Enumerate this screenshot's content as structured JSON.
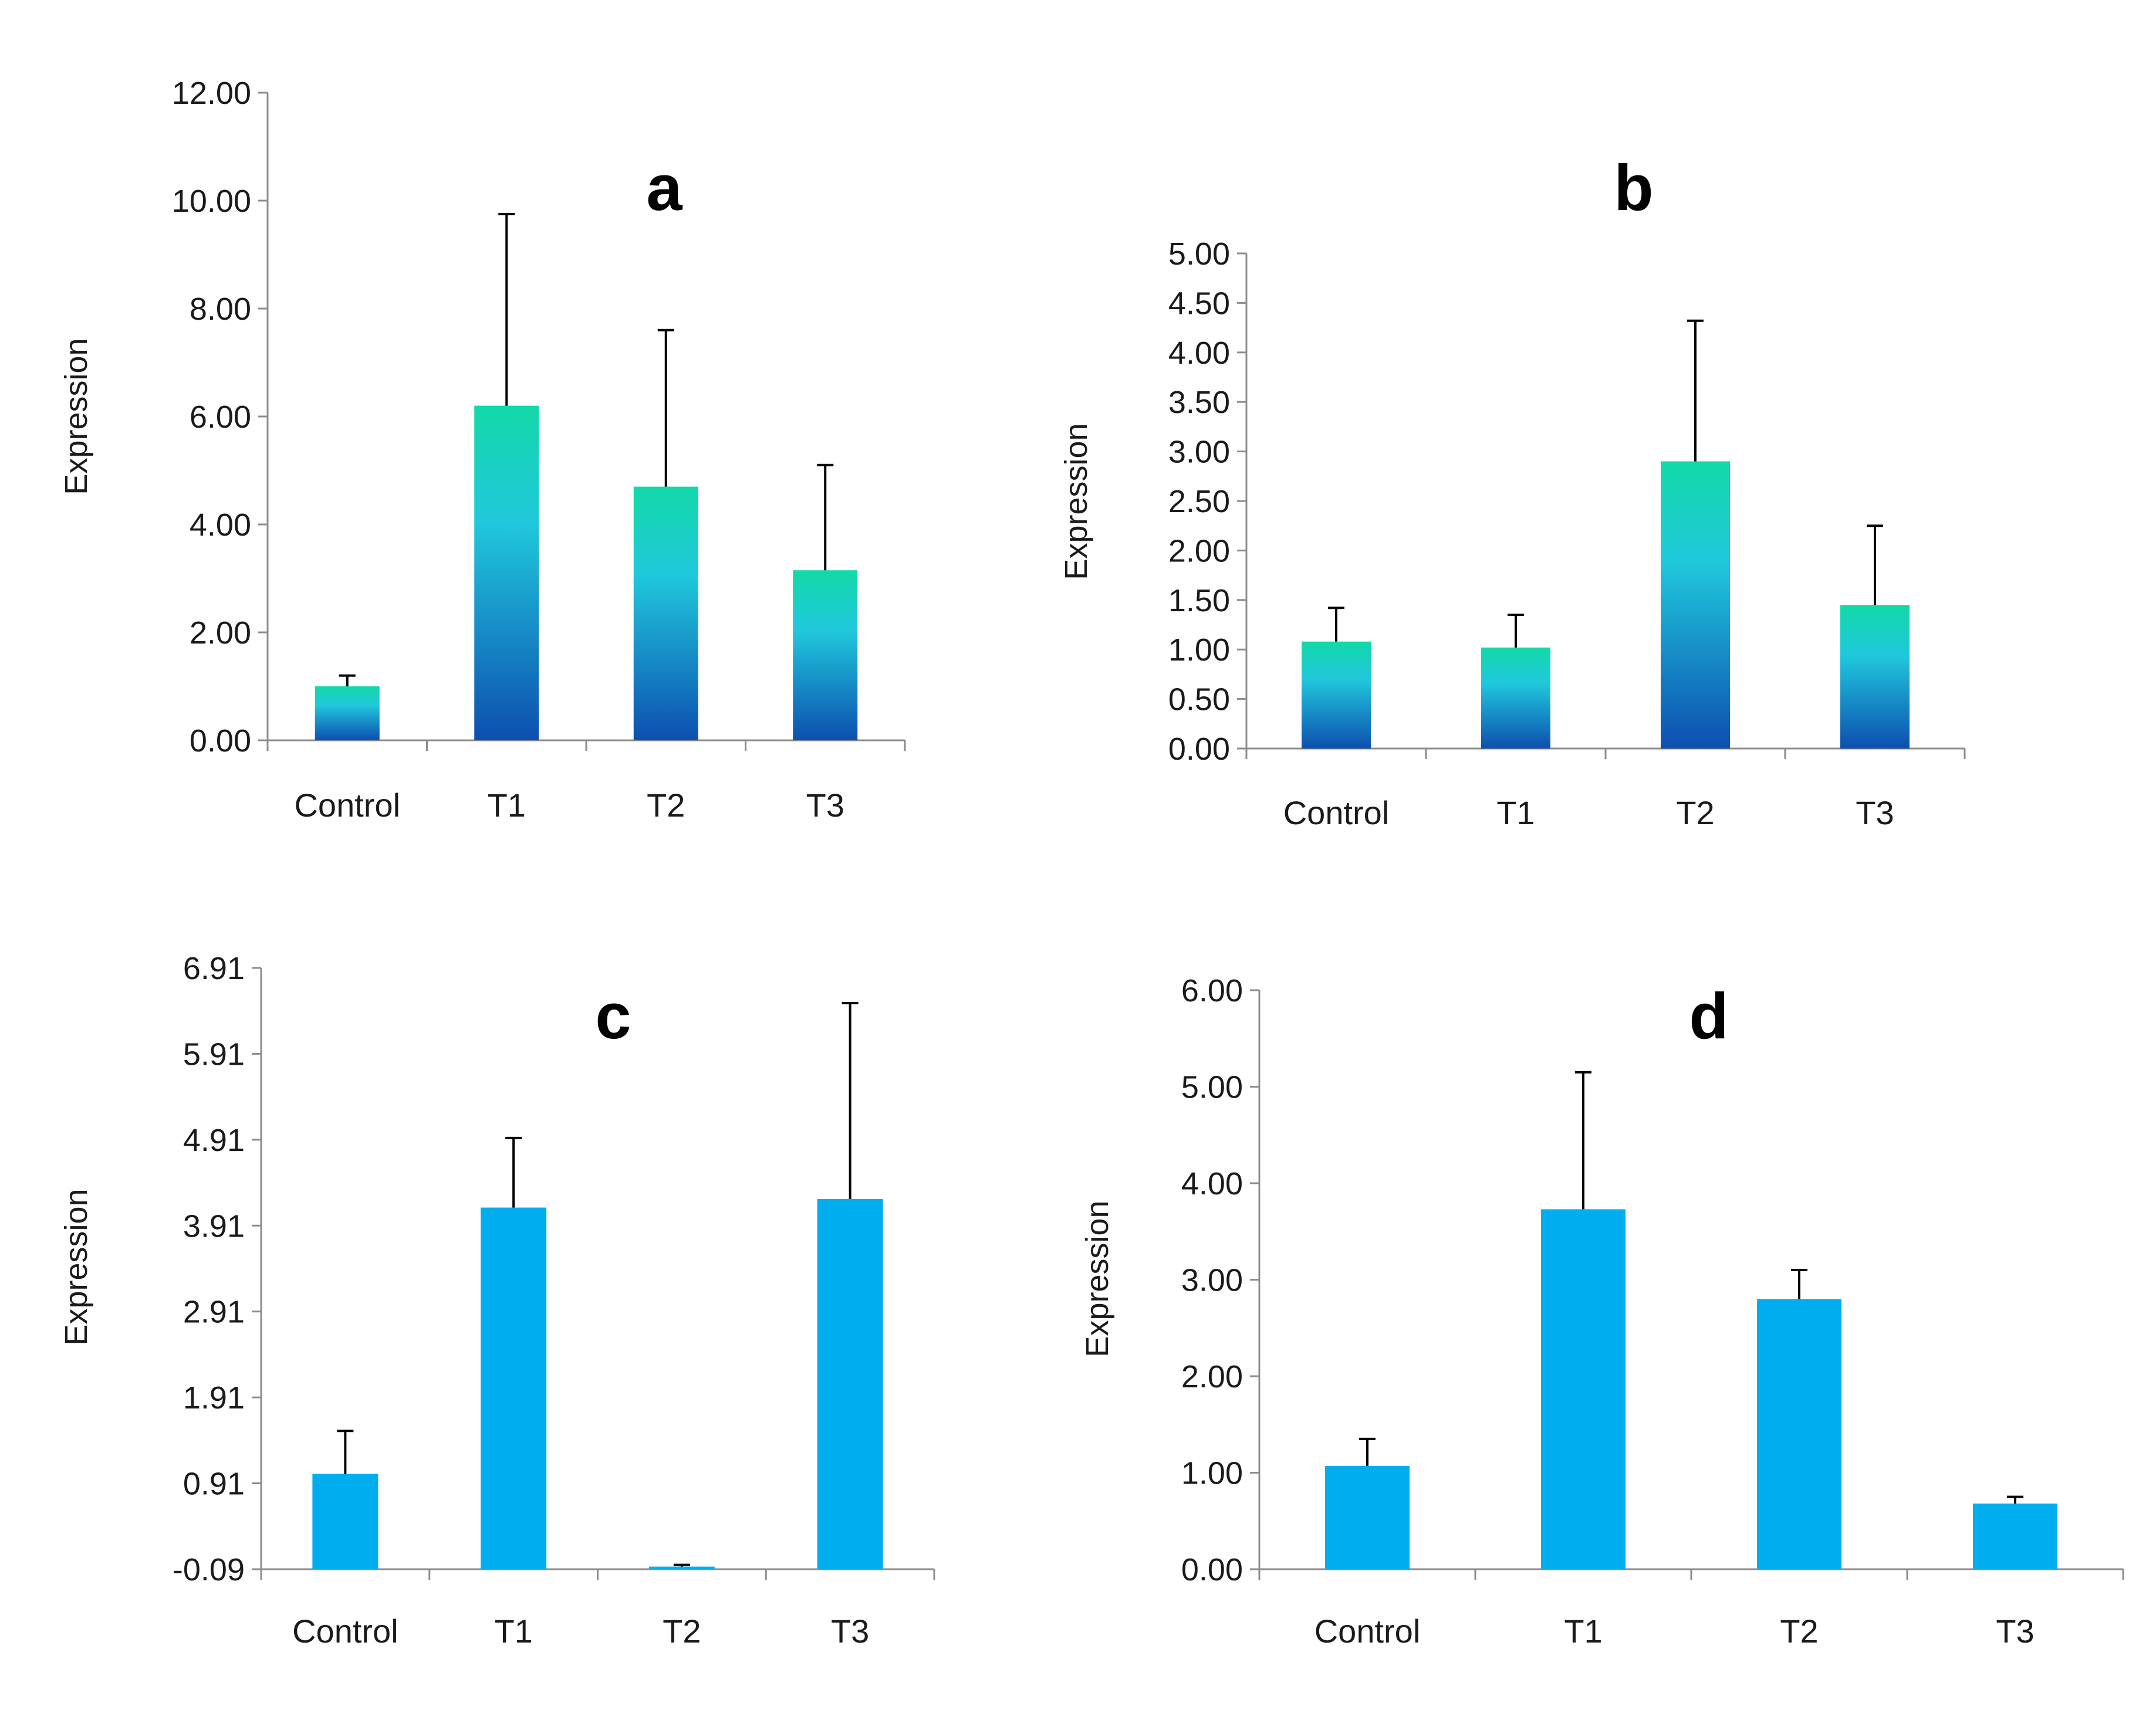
{
  "chart_data": [
    {
      "id": "a",
      "type": "bar",
      "title": "a",
      "ylabel": "Expression",
      "xlabel": "",
      "categories": [
        "Control",
        "T1",
        "T2",
        "T3"
      ],
      "values": [
        1.0,
        6.2,
        4.7,
        3.15
      ],
      "error_upper": [
        1.2,
        9.75,
        7.6,
        5.1
      ],
      "ylim": [
        0.0,
        12.0
      ],
      "ytick_labels": [
        "0.00",
        "2.00",
        "4.00",
        "6.00",
        "8.00",
        "10.00",
        "12.00"
      ],
      "fill": "gradient",
      "colors": {
        "top": "#12d9a8",
        "mid": "#20c8dc",
        "bottom": "#0d4fb0"
      }
    },
    {
      "id": "b",
      "type": "bar",
      "title": "b",
      "ylabel": "Expression",
      "xlabel": "",
      "categories": [
        "Control",
        "T1",
        "T2",
        "T3"
      ],
      "values": [
        1.08,
        1.02,
        2.9,
        1.45
      ],
      "error_upper": [
        1.42,
        1.35,
        4.32,
        2.25
      ],
      "ylim": [
        0.0,
        5.0
      ],
      "ytick_labels": [
        "0.00",
        "0.50",
        "1.00",
        "1.50",
        "2.00",
        "2.50",
        "3.00",
        "3.50",
        "4.00",
        "4.50",
        "5.00"
      ],
      "fill": "gradient",
      "colors": {
        "top": "#12d9a8",
        "mid": "#20c8dc",
        "bottom": "#0d4fb0"
      }
    },
    {
      "id": "c",
      "type": "bar",
      "title": "c",
      "ylabel": "Expression",
      "xlabel": "",
      "categories": [
        "Control",
        "T1",
        "T2",
        "T3"
      ],
      "values": [
        1.02,
        4.12,
        -0.06,
        4.22
      ],
      "error_upper": [
        1.52,
        4.93,
        -0.04,
        6.5
      ],
      "ylim": [
        -0.09,
        6.91
      ],
      "ytick_labels": [
        "-0.09",
        "0.91",
        "1.91",
        "2.91",
        "3.91",
        "4.91",
        "5.91",
        "6.91"
      ],
      "fill": "solid",
      "colors": {
        "bar": "#00aeef"
      }
    },
    {
      "id": "d",
      "type": "bar",
      "title": "d",
      "ylabel": "Expression",
      "xlabel": "",
      "categories": [
        "Control",
        "T1",
        "T2",
        "T3"
      ],
      "values": [
        1.07,
        3.73,
        2.8,
        0.68
      ],
      "error_upper": [
        1.35,
        5.15,
        3.1,
        0.75
      ],
      "ylim": [
        0.0,
        6.0
      ],
      "ytick_labels": [
        "0.00",
        "1.00",
        "2.00",
        "3.00",
        "4.00",
        "5.00",
        "6.00"
      ],
      "fill": "solid",
      "colors": {
        "bar": "#00aeef"
      }
    }
  ]
}
